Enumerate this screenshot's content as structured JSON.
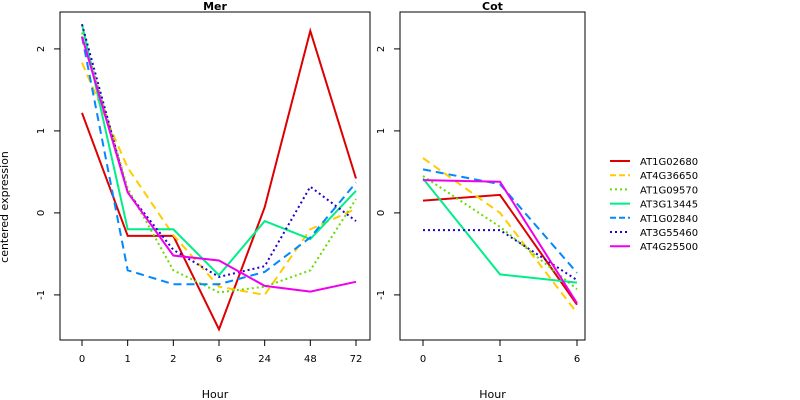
{
  "figure": {
    "ylabel": "centered expression"
  },
  "colors": {
    "AT1G02680": "#dd0000",
    "AT4G36650": "#ffcc00",
    "AT1G09570": "#66dd00",
    "AT3G13445": "#00ee88",
    "AT1G02840": "#0088ff",
    "AT3G55460": "#2200cc",
    "AT4G25500": "#ee00ee"
  },
  "legend": {
    "placement": "right",
    "entries": [
      {
        "name": "AT1G02680",
        "dash": "solid"
      },
      {
        "name": "AT4G36650",
        "dash": "dashed"
      },
      {
        "name": "AT1G09570",
        "dash": "dotted"
      },
      {
        "name": "AT3G13445",
        "dash": "solid"
      },
      {
        "name": "AT1G02840",
        "dash": "dashed"
      },
      {
        "name": "AT3G55460",
        "dash": "dotted"
      },
      {
        "name": "AT4G25500",
        "dash": "solid"
      }
    ]
  },
  "chart_data": [
    {
      "type": "line",
      "title": "Mer",
      "xlabel": "Hour",
      "ylabel": "centered expression",
      "categories": [
        "0",
        "1",
        "2",
        "6",
        "24",
        "48",
        "72"
      ],
      "ylim": [
        -1.55,
        2.45
      ],
      "yticks": [
        -1,
        0,
        1,
        2
      ],
      "grid": false,
      "series": [
        {
          "name": "AT1G02680",
          "values": [
            1.22,
            -0.28,
            -0.28,
            -1.42,
            0.07,
            2.22,
            0.42
          ]
        },
        {
          "name": "AT4G36650",
          "values": [
            1.83,
            0.55,
            -0.27,
            -0.9,
            -1.0,
            -0.2,
            0.05
          ]
        },
        {
          "name": "AT1G09570",
          "values": [
            2.2,
            0.3,
            -0.7,
            -0.97,
            -0.9,
            -0.7,
            0.17
          ]
        },
        {
          "name": "AT3G13445",
          "values": [
            2.3,
            -0.2,
            -0.2,
            -0.76,
            -0.1,
            -0.32,
            0.27
          ]
        },
        {
          "name": "AT1G02840",
          "values": [
            2.15,
            -0.7,
            -0.87,
            -0.87,
            -0.72,
            -0.3,
            0.37
          ]
        },
        {
          "name": "AT3G55460",
          "values": [
            2.3,
            0.25,
            -0.45,
            -0.78,
            -0.65,
            0.32,
            -0.1
          ]
        },
        {
          "name": "AT4G25500",
          "values": [
            2.15,
            0.25,
            -0.52,
            -0.58,
            -0.89,
            -0.96,
            -0.84
          ]
        }
      ]
    },
    {
      "type": "line",
      "title": "Cot",
      "xlabel": "Hour",
      "ylabel": "",
      "categories": [
        "0",
        "1",
        "6"
      ],
      "ylim": [
        -1.55,
        2.45
      ],
      "yticks": [
        -1,
        0,
        1,
        2
      ],
      "grid": false,
      "series": [
        {
          "name": "AT1G02680",
          "values": [
            0.15,
            0.22,
            -1.12
          ]
        },
        {
          "name": "AT4G36650",
          "values": [
            0.67,
            0.0,
            -1.22
          ]
        },
        {
          "name": "AT1G09570",
          "values": [
            0.45,
            -0.17,
            -0.93
          ]
        },
        {
          "name": "AT3G13445",
          "values": [
            0.42,
            -0.75,
            -0.85
          ]
        },
        {
          "name": "AT1G02840",
          "values": [
            0.53,
            0.35,
            -0.73
          ]
        },
        {
          "name": "AT3G55460",
          "values": [
            -0.21,
            -0.21,
            -0.82
          ]
        },
        {
          "name": "AT4G25500",
          "values": [
            0.4,
            0.38,
            -1.1
          ]
        }
      ]
    }
  ]
}
